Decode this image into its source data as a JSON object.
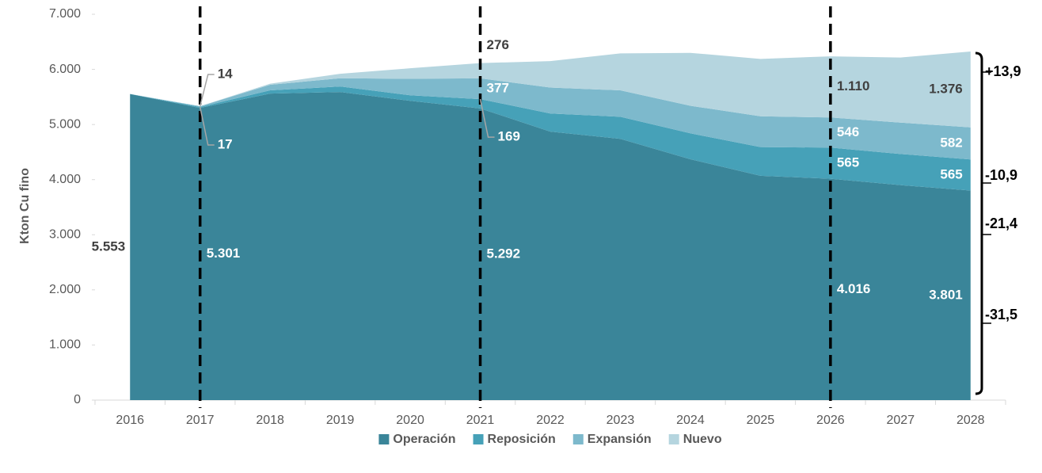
{
  "chart_data": {
    "type": "stacked_area",
    "y_axis_label": "Kton Cu fino",
    "categories": [
      "2016",
      "2017",
      "2018",
      "2019",
      "2020",
      "2021",
      "2022",
      "2023",
      "2024",
      "2025",
      "2026",
      "2027",
      "2028"
    ],
    "series": [
      {
        "name": "Operación",
        "color": "#3a8599",
        "values": [
          5553,
          5301,
          5560,
          5590,
          5430,
          5292,
          4870,
          4740,
          4370,
          4070,
          4016,
          3900,
          3801
        ],
        "value_labels": [
          "5.553",
          "5.301",
          null,
          null,
          null,
          "5.292",
          null,
          null,
          null,
          null,
          "4.016",
          null,
          "3.801"
        ]
      },
      {
        "name": "Reposición",
        "color": "#46a1b8",
        "values": [
          0,
          17,
          60,
          100,
          100,
          169,
          330,
          400,
          470,
          520,
          565,
          565,
          565
        ],
        "value_labels": [
          null,
          "17",
          null,
          null,
          null,
          "169",
          null,
          null,
          null,
          null,
          "565",
          null,
          "565"
        ]
      },
      {
        "name": "Expansión",
        "color": "#7db9cc",
        "values": [
          0,
          14,
          100,
          150,
          300,
          377,
          470,
          480,
          500,
          560,
          546,
          570,
          582
        ],
        "value_labels": [
          null,
          "14",
          null,
          null,
          null,
          "377",
          null,
          null,
          null,
          null,
          "546",
          null,
          "582"
        ]
      },
      {
        "name": "Nuevo",
        "color": "#b5d5df",
        "values": [
          0,
          0,
          20,
          80,
          190,
          276,
          480,
          670,
          960,
          1040,
          1110,
          1180,
          1376
        ],
        "value_labels": [
          null,
          null,
          null,
          null,
          null,
          "276",
          null,
          null,
          null,
          null,
          "1.110",
          null,
          "1.376"
        ]
      }
    ],
    "ylim": [
      0,
      7000
    ],
    "yticks": [
      0,
      {
        "value": 1000,
        "label": "1.000"
      },
      {
        "value": 2000,
        "label": "2.000"
      },
      {
        "value": 3000,
        "label": "3.000"
      },
      {
        "value": 4000,
        "label": "4.000"
      },
      {
        "value": 5000,
        "label": "5.000"
      },
      {
        "value": 6000,
        "label": "6.000"
      },
      {
        "value": 7000,
        "label": "7.000"
      }
    ],
    "reference_lines": [
      "2017",
      "2021",
      "2026"
    ],
    "annotations": [
      "+13,9",
      "-10,9",
      "-21,4",
      "-31,5"
    ],
    "legend": "bottom"
  }
}
